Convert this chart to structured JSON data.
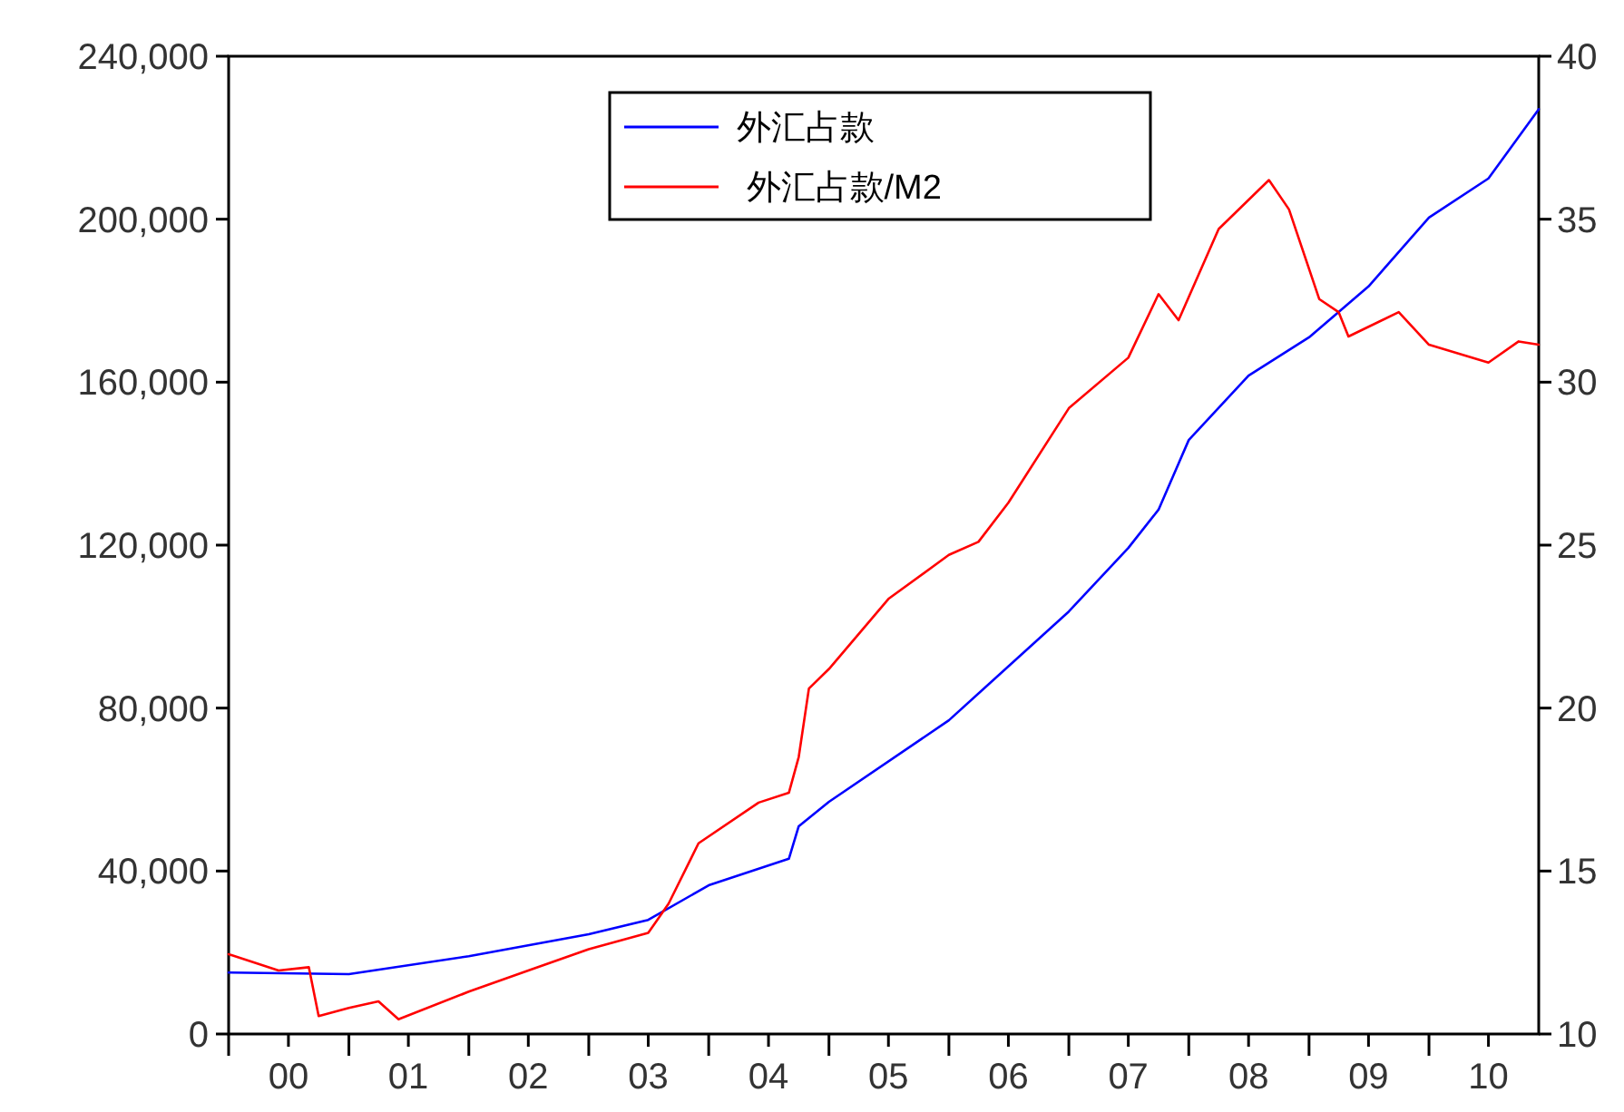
{
  "chart_data": {
    "type": "line",
    "xlim": [
      "2000-01",
      "2010-12"
    ],
    "xticks": [
      {
        "value": "2000-01",
        "label": null
      },
      {
        "value": "2000-07",
        "label": "00"
      },
      {
        "value": "2001-01",
        "label": null
      },
      {
        "value": "2001-07",
        "label": "01"
      },
      {
        "value": "2002-01",
        "label": null
      },
      {
        "value": "2002-07",
        "label": "02"
      },
      {
        "value": "2003-01",
        "label": null
      },
      {
        "value": "2003-07",
        "label": "03"
      },
      {
        "value": "2004-01",
        "label": null
      },
      {
        "value": "2004-07",
        "label": "04"
      },
      {
        "value": "2005-01",
        "label": null
      },
      {
        "value": "2005-07",
        "label": "05"
      },
      {
        "value": "2006-01",
        "label": null
      },
      {
        "value": "2006-07",
        "label": "06"
      },
      {
        "value": "2007-01",
        "label": null
      },
      {
        "value": "2007-07",
        "label": "07"
      },
      {
        "value": "2008-01",
        "label": null
      },
      {
        "value": "2008-07",
        "label": "08"
      },
      {
        "value": "2009-01",
        "label": null
      },
      {
        "value": "2009-07",
        "label": "09"
      },
      {
        "value": "2010-01",
        "label": null
      },
      {
        "value": "2010-07",
        "label": "10"
      }
    ],
    "ylim": [
      0,
      240000
    ],
    "yticks": [
      {
        "value": 0,
        "label": "0"
      },
      {
        "value": 40000,
        "label": "40,000"
      },
      {
        "value": 80000,
        "label": "80,000"
      },
      {
        "value": 120000,
        "label": "120,000"
      },
      {
        "value": 160000,
        "label": "160,000"
      },
      {
        "value": 200000,
        "label": "200,000"
      },
      {
        "value": 240000,
        "label": "240,000"
      }
    ],
    "y2lim": [
      10,
      40
    ],
    "y2ticks": [
      10,
      15,
      20,
      25,
      30,
      35,
      40
    ],
    "legend": "top",
    "grid": false,
    "marker": "none",
    "line_style": "solid",
    "series": [
      {
        "name": "外汇占款",
        "color": "#0000ff",
        "x": [
          "2000-01",
          "2001-01",
          "2002-01",
          "2003-01",
          "2003-07",
          "2004-01",
          "2004-09",
          "2004-10",
          "2005-01",
          "2006-01",
          "2007-01",
          "2007-07",
          "2007-10",
          "2008-01",
          "2008-07",
          "2009-01",
          "2009-07",
          "2010-01",
          "2010-07",
          "2010-12"
        ],
        "values": [
          15100,
          14700,
          19100,
          24500,
          28000,
          36500,
          43000,
          51000,
          57000,
          77000,
          103700,
          119300,
          128700,
          145800,
          161600,
          171000,
          183500,
          200400,
          210000,
          227000
        ]
      },
      {
        "name": " 外汇占款/M2",
        "color": "#ff0000",
        "axis": "y2",
        "x": [
          "2000-01",
          "2000-06",
          "2000-09",
          "2000-10",
          "2001-01",
          "2001-04",
          "2001-06",
          "2002-01",
          "2002-07",
          "2003-01",
          "2003-07",
          "2003-09",
          "2003-12",
          "2004-06",
          "2004-09",
          "2004-10",
          "2004-11",
          "2005-01",
          "2005-07",
          "2006-01",
          "2006-04",
          "2006-07",
          "2007-01",
          "2007-07",
          "2007-10",
          "2007-12",
          "2008-04",
          "2008-09",
          "2008-11",
          "2009-02",
          "2009-04",
          "2009-05",
          "2009-10",
          "2010-01",
          "2010-07",
          "2010-10",
          "2010-12"
        ],
        "values": [
          12.45,
          11.95,
          12.05,
          10.55,
          10.8,
          11.0,
          10.45,
          11.3,
          11.95,
          12.6,
          13.1,
          14.0,
          15.85,
          17.1,
          17.4,
          18.5,
          20.6,
          21.2,
          23.35,
          24.7,
          25.1,
          26.3,
          29.2,
          30.75,
          32.7,
          31.9,
          34.7,
          36.2,
          35.3,
          32.55,
          32.15,
          31.4,
          32.15,
          31.15,
          30.6,
          31.25,
          31.15
        ]
      }
    ]
  }
}
